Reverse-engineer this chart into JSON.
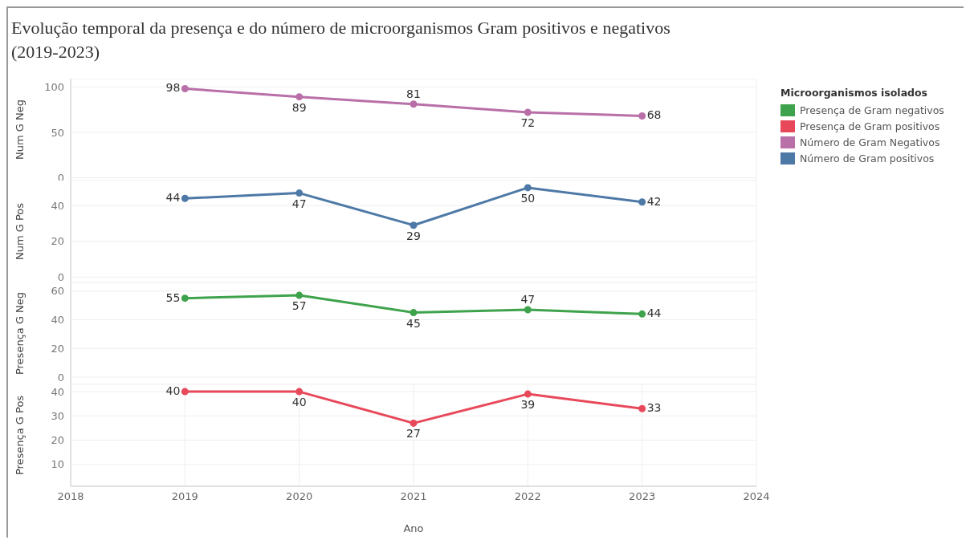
{
  "chart_data": [
    {
      "type": "line",
      "title": "Evolução temporal da presença e do número de microorganismos Gram positivos e negativos (2019-2023)",
      "ylabel": "Num G Neg",
      "x": [
        2019,
        2020,
        2021,
        2022,
        2023
      ],
      "xlim": [
        2018,
        2024
      ],
      "xticks": [
        2018,
        2019,
        2020,
        2021,
        2022,
        2023,
        2024
      ],
      "ylim": [
        -3,
        109
      ],
      "yticks": [
        0,
        50,
        100
      ],
      "tick_labels": "y",
      "grid": true,
      "marker": "circle",
      "data_labels": true,
      "legend": "right",
      "legend_title": "Microorganismos isolados",
      "series": [
        {
          "name": "Número de Gram Negativos",
          "color": "#b96fa8",
          "values": [
            98,
            89,
            81,
            72,
            68
          ]
        }
      ]
    },
    {
      "type": "line",
      "ylabel": "Num G Pos",
      "x": [
        2019,
        2020,
        2021,
        2022,
        2023
      ],
      "xlim": [
        2018,
        2024
      ],
      "xticks": [
        2018,
        2019,
        2020,
        2021,
        2022,
        2023,
        2024
      ],
      "ylim": [
        -3,
        54
      ],
      "yticks": [
        0,
        20,
        40
      ],
      "tick_labels": "y",
      "grid": true,
      "marker": "circle",
      "data_labels": true,
      "legend": "right",
      "series": [
        {
          "name": "Número de Gram positivos",
          "color": "#4e79a7",
          "values": [
            44,
            47,
            29,
            50,
            42
          ]
        }
      ]
    },
    {
      "type": "line",
      "ylabel": "Presença G Neg",
      "x": [
        2019,
        2020,
        2021,
        2022,
        2023
      ],
      "xlim": [
        2018,
        2024
      ],
      "xticks": [
        2018,
        2019,
        2020,
        2021,
        2022,
        2023,
        2024
      ],
      "ylim": [
        -5,
        66
      ],
      "yticks": [
        0,
        20,
        40,
        60
      ],
      "tick_labels": "y",
      "grid": true,
      "marker": "circle",
      "data_labels": true,
      "legend": "right",
      "series": [
        {
          "name": "Presença de Gram negativos",
          "color": "#3fa34d",
          "values": [
            55,
            57,
            45,
            47,
            44
          ]
        }
      ]
    },
    {
      "type": "line",
      "ylabel": "Presença G Pos",
      "xlabel": "Ano",
      "x": [
        2019,
        2020,
        2021,
        2022,
        2023
      ],
      "xlim": [
        2018,
        2024
      ],
      "xticks": [
        2018,
        2019,
        2020,
        2021,
        2022,
        2023,
        2024
      ],
      "ylim": [
        1,
        43
      ],
      "yticks": [
        10,
        20,
        30,
        40
      ],
      "grid": true,
      "marker": "circle",
      "data_labels": true,
      "legend": "right",
      "series": [
        {
          "name": "Presença de Gram positivos",
          "color": "#e8495a",
          "values": [
            40,
            40,
            27,
            39,
            33
          ]
        }
      ]
    }
  ]
}
